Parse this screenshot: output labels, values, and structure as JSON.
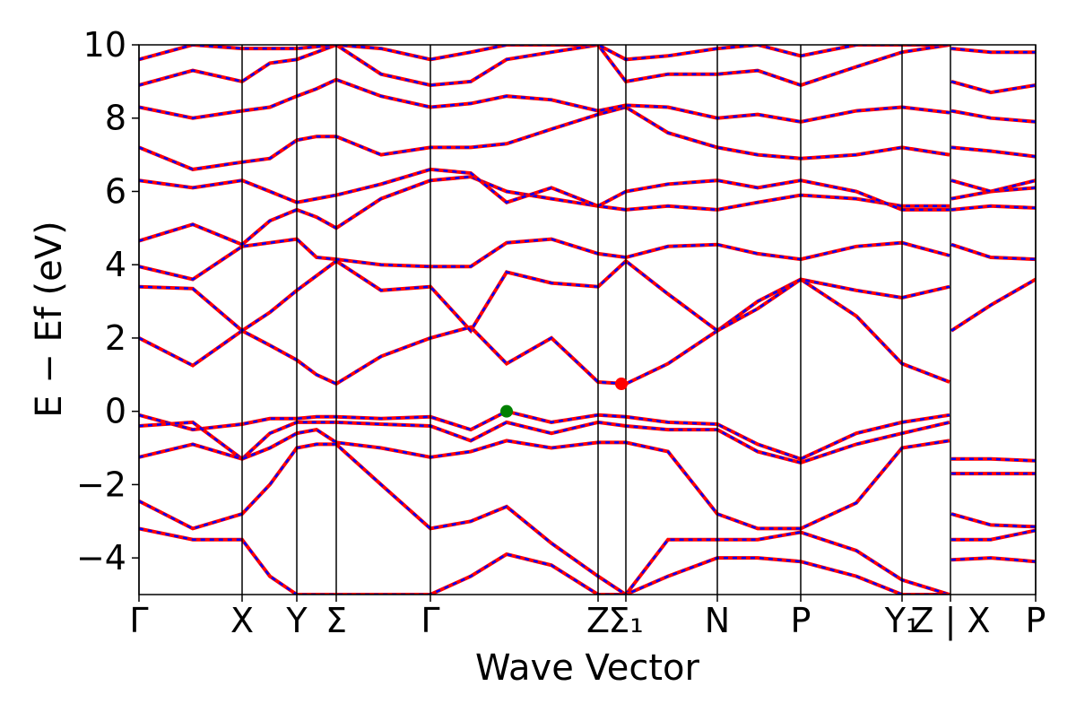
{
  "chart_data": {
    "type": "line",
    "xlabel": "Wave Vector",
    "ylabel": "E − Ef (eV)",
    "xlim": [
      0,
      1
    ],
    "ylim": [
      -5,
      10
    ],
    "yticks": [
      {
        "value": -4,
        "label": "−4"
      },
      {
        "value": -2,
        "label": "−2"
      },
      0,
      2,
      4,
      6,
      8,
      10
    ],
    "xticks": [
      {
        "value": 0,
        "label": "Γ"
      },
      {
        "value": 0.115,
        "label": "X"
      },
      {
        "value": 0.176,
        "label": "Y"
      },
      {
        "value": 0.22,
        "label": "Σ"
      },
      {
        "value": 0.325,
        "label": "Γ"
      },
      {
        "value": 0.512,
        "label": "Z"
      },
      {
        "value": 0.543,
        "label": "Σ₁"
      },
      {
        "value": 0.645,
        "label": "N"
      },
      {
        "value": 0.738,
        "label": "P"
      },
      {
        "value": 0.851,
        "label": "Y₁"
      },
      {
        "value": 0.905,
        "label": "Z | X"
      },
      {
        "value": 1,
        "label": "P"
      }
    ],
    "overlay_color": "#0000ff",
    "x": [
      0,
      0.06,
      0.115,
      0.146,
      0.176,
      0.198,
      0.22,
      0.27,
      0.325,
      0.37,
      0.41,
      0.46,
      0.512,
      0.543,
      0.59,
      0.645,
      0.69,
      0.738,
      0.8,
      0.851,
      0.904,
      0.905,
      0.906,
      0.95,
      1
    ],
    "series": [
      {
        "color": "#ff0000",
        "values": [
          -0.1,
          -0.5,
          -0.35,
          -0.2,
          -0.2,
          -0.15,
          -0.15,
          -0.2,
          -0.15,
          -0.5,
          0,
          -0.3,
          -0.1,
          -0.15,
          -0.3,
          -0.35,
          -0.9,
          -1.3,
          -0.6,
          -0.3,
          -0.1,
          null,
          -1.3,
          -1.3,
          -1.35
        ]
      },
      {
        "color": "#ff0000",
        "values": [
          -0.4,
          -0.3,
          -1.3,
          -0.6,
          -0.3,
          -0.3,
          -0.3,
          -0.35,
          -0.4,
          -0.8,
          -0.3,
          -0.6,
          -0.3,
          -0.4,
          -0.5,
          -0.5,
          -1.1,
          -1.4,
          -0.9,
          -0.6,
          -0.3,
          null,
          -1.7,
          -1.7,
          -1.7
        ]
      },
      {
        "color": "#ff0000",
        "values": [
          -1.25,
          -0.9,
          -1.3,
          -1.0,
          -0.6,
          -0.5,
          -0.85,
          -1.0,
          -1.25,
          -1.1,
          -0.8,
          -1.0,
          -0.85,
          -0.85,
          -1.1,
          -2.8,
          -3.2,
          -3.2,
          -2.5,
          -1.0,
          -0.8,
          null,
          -2.8,
          -3.1,
          -3.15
        ]
      },
      {
        "color": "#ff0000",
        "values": [
          -2.45,
          -3.2,
          -2.8,
          -2.0,
          -1.0,
          -0.9,
          -0.9,
          -2.0,
          -3.2,
          -3.0,
          -2.6,
          -3.6,
          -4.5,
          -5.0,
          -3.5,
          -3.5,
          -3.5,
          -3.3,
          -3.8,
          -4.6,
          -5.0,
          null,
          -3.5,
          -3.5,
          -3.25
        ]
      },
      {
        "color": "#ff0000",
        "values": [
          -3.2,
          -3.5,
          -3.5,
          -4.5,
          -5.0,
          -5.0,
          -5.0,
          -5.0,
          -5.0,
          -4.5,
          -3.9,
          -4.2,
          -5.0,
          -5.0,
          -4.5,
          -4.0,
          -4.0,
          -4.1,
          -4.5,
          -5.0,
          -5.0,
          null,
          -4.05,
          -4.0,
          -4.1
        ]
      },
      {
        "color": "#ff0000",
        "values": [
          2.0,
          1.25,
          2.2,
          1.8,
          1.4,
          1.0,
          0.75,
          1.5,
          2.0,
          2.3,
          1.3,
          2.0,
          0.8,
          0.75,
          1.3,
          2.2,
          3.0,
          3.6,
          2.6,
          1.3,
          0.8,
          null,
          2.2,
          2.9,
          3.6
        ]
      },
      {
        "color": "#ff0000",
        "values": [
          3.4,
          3.35,
          2.2,
          2.7,
          3.3,
          3.7,
          4.1,
          3.3,
          3.4,
          2.2,
          3.8,
          3.5,
          3.4,
          4.1,
          3.2,
          2.2,
          2.8,
          3.6,
          3.3,
          3.1,
          3.4,
          null,
          4.55,
          4.2,
          4.15
        ]
      },
      {
        "color": "#ff0000",
        "values": [
          3.95,
          3.6,
          4.5,
          4.6,
          4.7,
          4.2,
          4.15,
          4.0,
          3.95,
          3.95,
          4.6,
          4.7,
          4.3,
          4.2,
          4.5,
          4.55,
          4.3,
          4.15,
          4.5,
          4.6,
          4.25,
          null,
          5.5,
          5.6,
          5.55
        ]
      },
      {
        "color": "#ff0000",
        "values": [
          4.65,
          5.1,
          4.55,
          5.2,
          5.5,
          5.3,
          5.0,
          5.8,
          6.3,
          6.4,
          6.0,
          5.8,
          5.6,
          5.5,
          5.6,
          5.5,
          5.7,
          5.9,
          5.8,
          5.6,
          5.6,
          null,
          5.8,
          6.0,
          6.1
        ]
      },
      {
        "color": "#ff0000",
        "values": [
          6.3,
          6.1,
          6.3,
          6.0,
          5.7,
          5.8,
          5.9,
          6.2,
          6.6,
          6.5,
          5.7,
          6.1,
          5.6,
          6.0,
          6.2,
          6.3,
          6.1,
          6.3,
          6.0,
          5.5,
          5.5,
          null,
          6.3,
          6.0,
          6.3
        ]
      },
      {
        "color": "#ff0000",
        "values": [
          7.2,
          6.6,
          6.8,
          6.9,
          7.4,
          7.5,
          7.5,
          7.0,
          7.2,
          7.2,
          7.3,
          7.7,
          8.1,
          8.3,
          7.6,
          7.2,
          7.0,
          6.9,
          7.0,
          7.2,
          7.0,
          null,
          7.2,
          7.1,
          6.95
        ]
      },
      {
        "color": "#ff0000",
        "values": [
          8.3,
          8.0,
          8.2,
          8.3,
          8.6,
          8.8,
          9.05,
          8.6,
          8.3,
          8.4,
          8.6,
          8.5,
          8.2,
          8.35,
          8.3,
          8.0,
          8.1,
          7.9,
          8.2,
          8.3,
          8.15,
          null,
          8.2,
          8.0,
          7.9
        ]
      },
      {
        "color": "#ff0000",
        "values": [
          8.9,
          9.3,
          9.0,
          9.5,
          9.6,
          9.8,
          10.0,
          9.2,
          8.9,
          9.0,
          9.6,
          9.8,
          10.0,
          9.0,
          9.2,
          9.2,
          9.3,
          8.9,
          9.4,
          9.8,
          10.0,
          null,
          9.0,
          8.7,
          8.9
        ]
      },
      {
        "color": "#ff0000",
        "values": [
          9.6,
          10.0,
          9.9,
          9.9,
          9.9,
          9.95,
          10.0,
          9.9,
          9.6,
          9.8,
          10.0,
          10.0,
          10.0,
          9.6,
          9.7,
          9.9,
          10.0,
          9.7,
          10.0,
          10.0,
          10.0,
          null,
          9.9,
          9.8,
          9.8
        ]
      }
    ],
    "markers": [
      {
        "x": 0.41,
        "y": 0,
        "color": "#008000"
      },
      {
        "x": 0.538,
        "y": 0.75,
        "color": "#ff0000"
      }
    ]
  }
}
